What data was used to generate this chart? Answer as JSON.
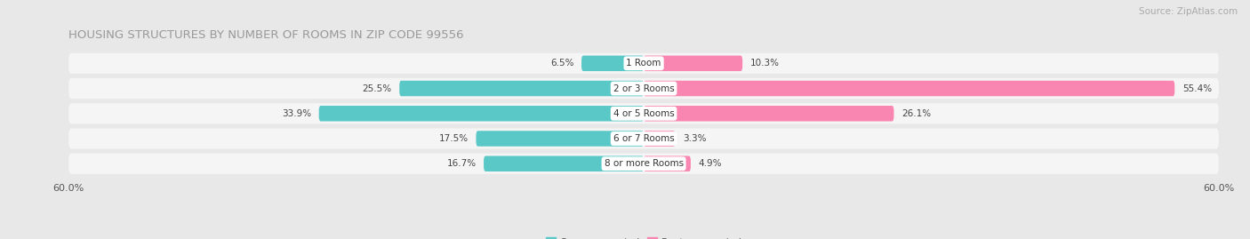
{
  "title": "HOUSING STRUCTURES BY NUMBER OF ROOMS IN ZIP CODE 99556",
  "source": "Source: ZipAtlas.com",
  "categories": [
    "1 Room",
    "2 or 3 Rooms",
    "4 or 5 Rooms",
    "6 or 7 Rooms",
    "8 or more Rooms"
  ],
  "owner_values": [
    6.5,
    25.5,
    33.9,
    17.5,
    16.7
  ],
  "renter_values": [
    10.3,
    55.4,
    26.1,
    3.3,
    4.9
  ],
  "owner_color": "#5bc8c8",
  "renter_color": "#f986b0",
  "bar_height": 0.62,
  "xlim": [
    -60,
    60
  ],
  "xticklabels_left": "60.0%",
  "xticklabels_right": "60.0%",
  "background_color": "#e8e8e8",
  "bar_background_color": "#f5f5f5",
  "row_gap_color": "#e8e8e8",
  "title_fontsize": 9.5,
  "source_fontsize": 7.5,
  "label_fontsize": 7.5,
  "category_fontsize": 7.5,
  "legend_fontsize": 8,
  "tick_fontsize": 8
}
